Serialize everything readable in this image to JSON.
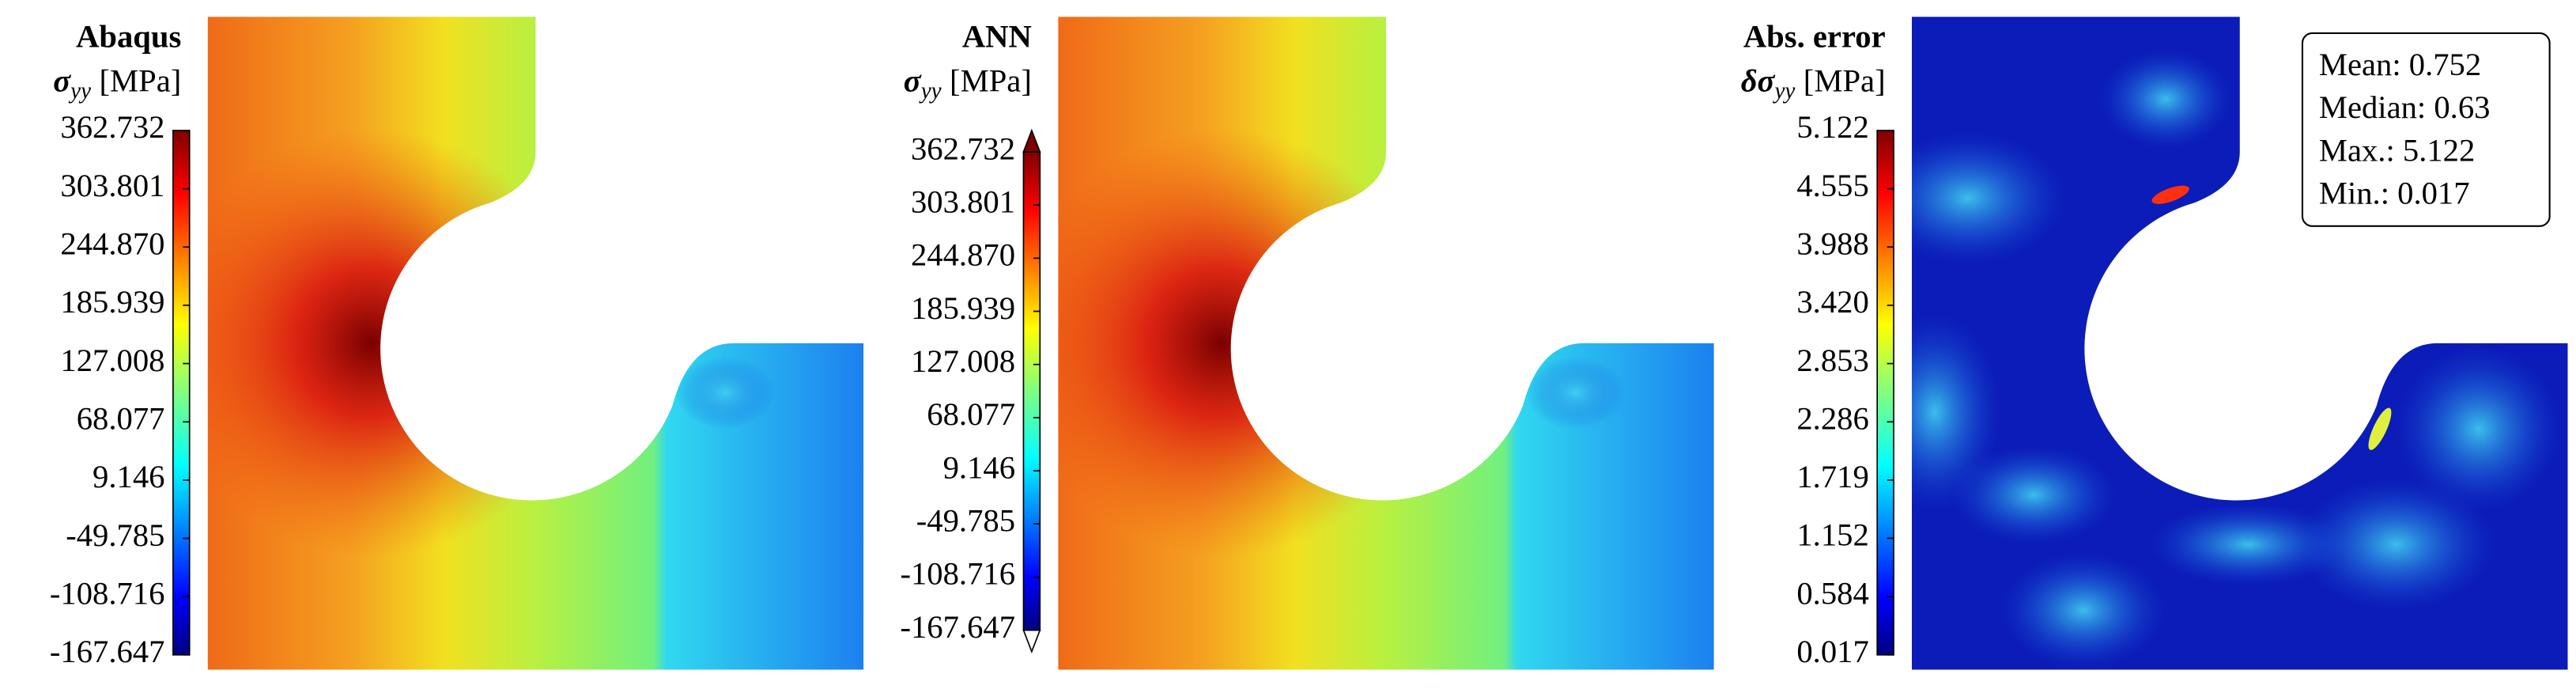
{
  "chart_data": [
    {
      "type": "contour",
      "title": "Abaqus",
      "colorbar_label": {
        "symbol": "σ",
        "subscript": "yy",
        "unit": "[MPa]"
      },
      "colormap": "jet",
      "clim": [
        -167.647,
        362.732
      ],
      "cticks": [
        362.732,
        303.801,
        {
          "value": 244.87,
          "label": "244.870"
        },
        185.939,
        127.008,
        68.077,
        9.146,
        -49.785,
        -108.716,
        -167.647
      ]
    },
    {
      "type": "contour",
      "title": "ANN",
      "colorbar_label": {
        "symbol": "σ",
        "subscript": "yy",
        "unit": "[MPa]"
      },
      "colormap": "jet",
      "extend": "both",
      "clim": [
        -167.647,
        362.732
      ],
      "cticks": [
        362.732,
        303.801,
        {
          "value": 244.87,
          "label": "244.870"
        },
        185.939,
        127.008,
        68.077,
        9.146,
        -49.785,
        -108.716,
        -167.647
      ]
    },
    {
      "type": "contour",
      "title": "Abs. error",
      "colorbar_label": {
        "symbol": "δσ",
        "subscript": "yy",
        "unit": "[MPa]"
      },
      "colormap": "jet",
      "clim": [
        0.017,
        5.122
      ],
      "cticks": [
        5.122,
        4.555,
        3.988,
        {
          "value": 3.42,
          "label": "3.420"
        },
        2.853,
        2.286,
        1.719,
        1.152,
        0.584,
        0.017
      ],
      "annotations": [
        "Mean: 0.752",
        "Median: 0.63",
        "Max.: 5.122",
        "Min.: 0.017"
      ]
    }
  ]
}
